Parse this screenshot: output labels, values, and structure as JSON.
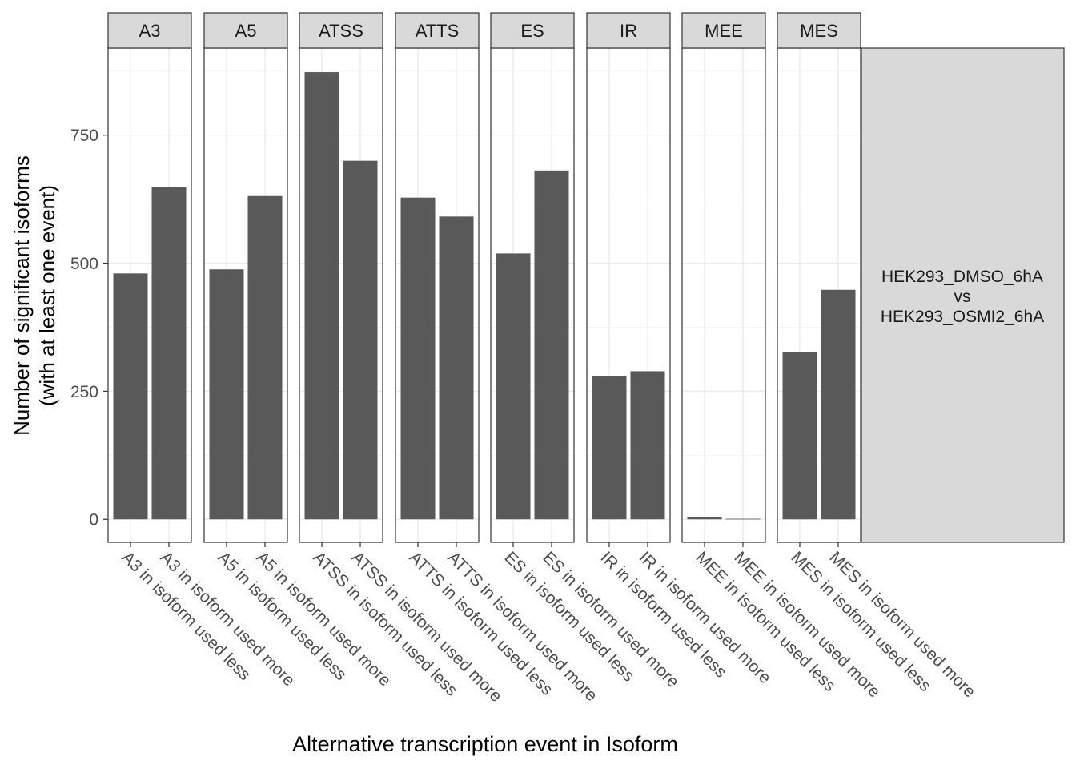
{
  "chart_data": {
    "type": "bar",
    "layout": "faceted",
    "ylabel_line1": "Number of significant isoforms",
    "ylabel_line2": "(with at least one event)",
    "xlabel": "Alternative transcription event in Isoform",
    "ylim": [
      -45,
      920
    ],
    "yticks": [
      0,
      250,
      500,
      750
    ],
    "grid": true,
    "legend_text": [
      "HEK293_DMSO_6hA",
      "vs",
      "HEK293_OSMI2_6hA"
    ],
    "legend_placement": "right",
    "bar_color": "#595959",
    "strip_color": "#d9d9d9",
    "facets": [
      {
        "label": "A3",
        "categories": [
          "A3 in isoform used less",
          "A3 in isoform used more"
        ],
        "values": [
          480,
          648
        ]
      },
      {
        "label": "A5",
        "categories": [
          "A5 in isoform used less",
          "A5 in isoform used more"
        ],
        "values": [
          488,
          631
        ]
      },
      {
        "label": "ATSS",
        "categories": [
          "ATSS in isoform used less",
          "ATSS in isoform used more"
        ],
        "values": [
          873,
          700
        ]
      },
      {
        "label": "ATTS",
        "categories": [
          "ATTS in isoform used less",
          "ATTS in isoform used more"
        ],
        "values": [
          628,
          591
        ]
      },
      {
        "label": "ES",
        "categories": [
          "ES in isoform used less",
          "ES in isoform used more"
        ],
        "values": [
          519,
          681
        ]
      },
      {
        "label": "IR",
        "categories": [
          "IR in isoform used less",
          "IR in isoform used more"
        ],
        "values": [
          280,
          289
        ]
      },
      {
        "label": "MEE",
        "categories": [
          "MEE in isoform used less",
          "MEE in isoform used more"
        ],
        "values": [
          4,
          1
        ]
      },
      {
        "label": "MES",
        "categories": [
          "MES in isoform used less",
          "MES in isoform used more"
        ],
        "values": [
          326,
          448
        ]
      }
    ]
  }
}
